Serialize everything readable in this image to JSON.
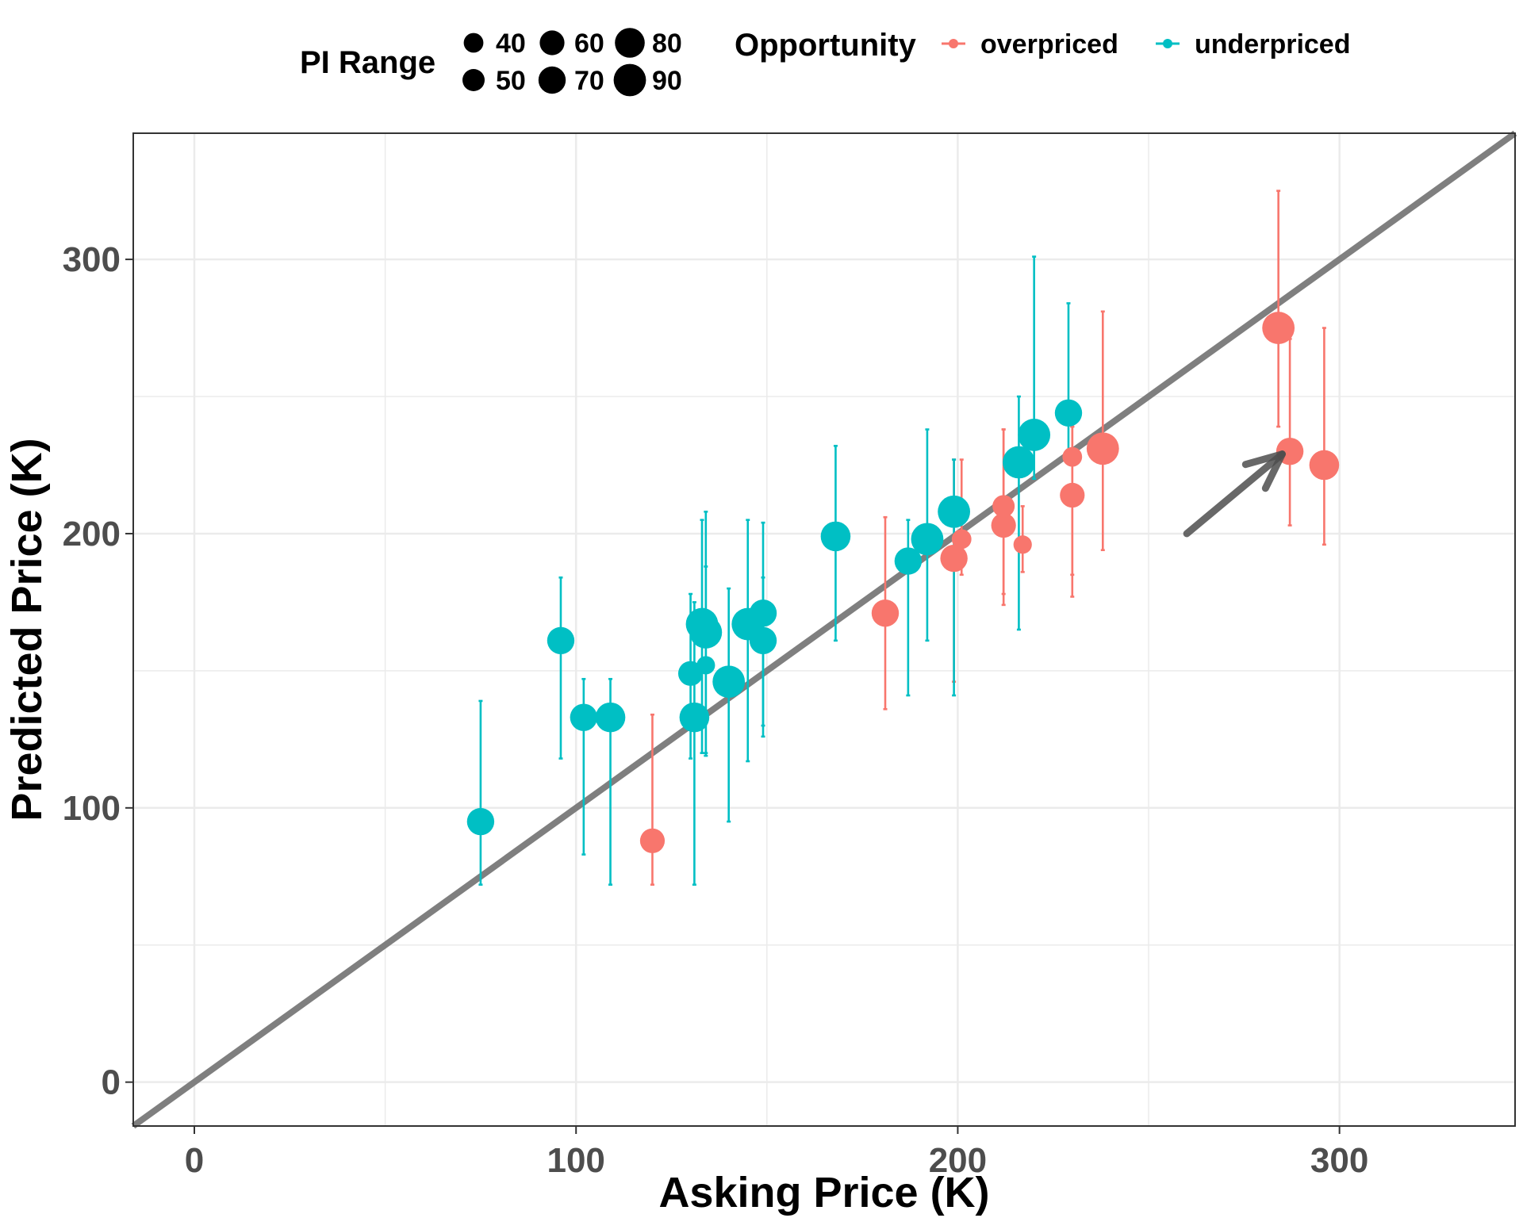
{
  "chart_data": {
    "type": "scatter",
    "xlabel": "Asking Price (K)",
    "ylabel": "Predicted Price (K)",
    "xlim": [
      -16,
      346
    ],
    "ylim": [
      -16,
      346
    ],
    "x_ticks": [
      0,
      100,
      200,
      300
    ],
    "y_ticks": [
      0,
      100,
      200,
      300
    ],
    "grid": true,
    "reference_line": {
      "slope": 1,
      "intercept": 0,
      "color": "#7f7f7f"
    },
    "annotation_arrow": {
      "from": [
        260,
        200
      ],
      "to": [
        285,
        229
      ],
      "color": "#4d4d4d"
    },
    "legend": {
      "position": "top",
      "size_title": "PI Range",
      "size_entries": [
        {
          "label": "40",
          "value": 40
        },
        {
          "label": "50",
          "value": 50
        },
        {
          "label": "60",
          "value": 60
        },
        {
          "label": "70",
          "value": 70
        },
        {
          "label": "80",
          "value": 80
        },
        {
          "label": "90",
          "value": 90
        }
      ],
      "color_title": "Opportunity",
      "color_entries": [
        {
          "label": "overpriced",
          "color": "#f8766d"
        },
        {
          "label": "underpriced",
          "color": "#00bfc4"
        }
      ]
    },
    "series": [
      {
        "name": "overpriced",
        "color": "#f8766d",
        "points": [
          {
            "x": 120,
            "y": 88,
            "low": 72,
            "high": 134,
            "pi": 60
          },
          {
            "x": 181,
            "y": 171,
            "low": 136,
            "high": 206,
            "pi": 70
          },
          {
            "x": 199,
            "y": 191,
            "low": 146,
            "high": 227,
            "pi": 70
          },
          {
            "x": 201,
            "y": 198,
            "low": 185,
            "high": 227,
            "pi": 40
          },
          {
            "x": 212,
            "y": 203,
            "low": 174,
            "high": 238,
            "pi": 60
          },
          {
            "x": 212,
            "y": 210,
            "low": 178,
            "high": 238,
            "pi": 50
          },
          {
            "x": 217,
            "y": 196,
            "low": 186,
            "high": 210,
            "pi": 35
          },
          {
            "x": 230,
            "y": 214,
            "low": 177,
            "high": 239,
            "pi": 60
          },
          {
            "x": 230,
            "y": 228,
            "low": 185,
            "high": 239,
            "pi": 40
          },
          {
            "x": 238,
            "y": 231,
            "low": 194,
            "high": 281,
            "pi": 90
          },
          {
            "x": 284,
            "y": 275,
            "low": 239,
            "high": 325,
            "pi": 90
          },
          {
            "x": 287,
            "y": 230,
            "low": 203,
            "high": 271,
            "pi": 70
          },
          {
            "x": 296,
            "y": 225,
            "low": 196,
            "high": 275,
            "pi": 80
          }
        ]
      },
      {
        "name": "underpriced",
        "color": "#00bfc4",
        "points": [
          {
            "x": 75,
            "y": 95,
            "low": 72,
            "high": 139,
            "pi": 70
          },
          {
            "x": 96,
            "y": 161,
            "low": 118,
            "high": 184,
            "pi": 70
          },
          {
            "x": 102,
            "y": 133,
            "low": 83,
            "high": 147,
            "pi": 70
          },
          {
            "x": 109,
            "y": 133,
            "low": 72,
            "high": 147,
            "pi": 80
          },
          {
            "x": 130,
            "y": 149,
            "low": 118,
            "high": 178,
            "pi": 60
          },
          {
            "x": 131,
            "y": 133,
            "low": 72,
            "high": 175,
            "pi": 80
          },
          {
            "x": 133,
            "y": 167,
            "low": 120,
            "high": 205,
            "pi": 90
          },
          {
            "x": 134,
            "y": 164,
            "low": 120,
            "high": 208,
            "pi": 90
          },
          {
            "x": 134,
            "y": 152,
            "low": 119,
            "high": 188,
            "pi": 35
          },
          {
            "x": 140,
            "y": 146,
            "low": 95,
            "high": 180,
            "pi": 90
          },
          {
            "x": 145,
            "y": 167,
            "low": 117,
            "high": 205,
            "pi": 90
          },
          {
            "x": 149,
            "y": 171,
            "low": 130,
            "high": 204,
            "pi": 70
          },
          {
            "x": 149,
            "y": 161,
            "low": 126,
            "high": 184,
            "pi": 70
          },
          {
            "x": 168,
            "y": 199,
            "low": 161,
            "high": 232,
            "pi": 80
          },
          {
            "x": 187,
            "y": 190,
            "low": 141,
            "high": 205,
            "pi": 70
          },
          {
            "x": 192,
            "y": 198,
            "low": 161,
            "high": 238,
            "pi": 90
          },
          {
            "x": 199,
            "y": 208,
            "low": 141,
            "high": 227,
            "pi": 90
          },
          {
            "x": 216,
            "y": 226,
            "low": 165,
            "high": 250,
            "pi": 90
          },
          {
            "x": 220,
            "y": 236,
            "low": 220,
            "high": 301,
            "pi": 90
          },
          {
            "x": 229,
            "y": 244,
            "low": 230,
            "high": 284,
            "pi": 70
          }
        ]
      }
    ]
  }
}
